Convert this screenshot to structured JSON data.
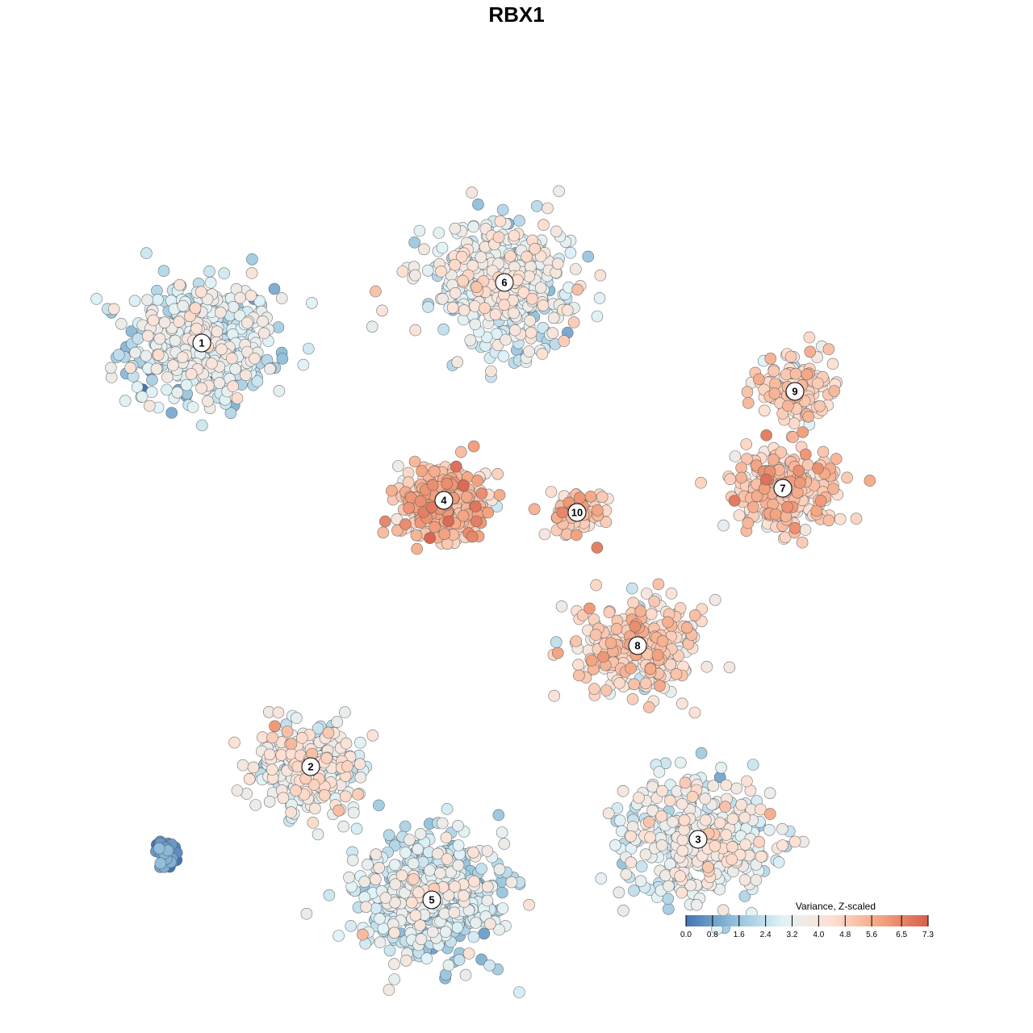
{
  "chart_data": {
    "type": "scatter",
    "title": "RBX1",
    "xlabel": "",
    "ylabel": "",
    "grid": false,
    "legend_placement": "bottom-right",
    "color_scale": {
      "title": "Variance, Z-scaled",
      "min": 0.0,
      "max": 7.3,
      "ticks": [
        "0.0",
        "0.8",
        "1.6",
        "2.4",
        "3.2",
        "4.0",
        "4.8",
        "5.6",
        "6.5",
        "7.3"
      ],
      "colors": [
        "#4575b4",
        "#91bfdb",
        "#e0f3f8",
        "#fee0d2",
        "#f4a582",
        "#d6604d"
      ]
    },
    "clusters": [
      {
        "label": "1",
        "x": -24,
        "y": 26,
        "mean_value": 2.7,
        "spread": 5.5,
        "n": 520
      },
      {
        "label": "2",
        "x": -15,
        "y": -9,
        "mean_value": 3.5,
        "spread": 4.5,
        "n": 260
      },
      {
        "label": "3",
        "x": 17,
        "y": -15,
        "mean_value": 3.2,
        "spread": 5.5,
        "n": 420
      },
      {
        "label": "4",
        "x": -4,
        "y": 13,
        "mean_value": 5.0,
        "spread": 3.4,
        "n": 340
      },
      {
        "label": "5",
        "x": -5,
        "y": -20,
        "mean_value": 2.6,
        "spread": 5.5,
        "n": 520
      },
      {
        "label": "6",
        "x": 1,
        "y": 31,
        "mean_value": 3.1,
        "spread": 5.5,
        "n": 460
      },
      {
        "label": "7",
        "x": 24,
        "y": 14,
        "mean_value": 4.7,
        "spread": 4.0,
        "n": 240
      },
      {
        "label": "8",
        "x": 12,
        "y": 1,
        "mean_value": 4.4,
        "spread": 4.5,
        "n": 300
      },
      {
        "label": "9",
        "x": 25,
        "y": 22,
        "mean_value": 4.4,
        "spread": 3.0,
        "n": 150
      },
      {
        "label": "10",
        "x": 7,
        "y": 12,
        "mean_value": 5.0,
        "spread": 2.0,
        "n": 70
      }
    ],
    "outlier_groups": [
      {
        "x": -27,
        "y": -16,
        "mean_value": 0.3,
        "n": 40
      }
    ]
  }
}
